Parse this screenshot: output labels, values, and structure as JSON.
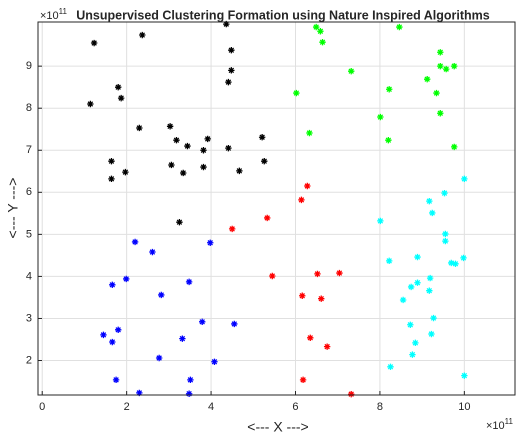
{
  "chart_data": {
    "type": "scatter",
    "title": "Unsupervised Clustering Formation using Nature Inspired Algorithms",
    "x_label": "<--- X --->",
    "y_label": "<--- Y --->",
    "x_multiplier": {
      "base": "×10",
      "exponent": "11"
    },
    "y_multiplier": {
      "base": "×10",
      "exponent": "11"
    },
    "xlim": [
      -0.1,
      11.2
    ],
    "ylim": [
      1.18,
      10.05
    ],
    "xticks": [
      0,
      2,
      4,
      6,
      8,
      10
    ],
    "yticks": [
      2,
      3,
      4,
      5,
      6,
      7,
      8,
      9
    ],
    "grid": true,
    "marker": "asterisk",
    "series": [
      {
        "color": "#000000",
        "x": [
          1.23,
          2.37,
          4.36,
          4.48,
          4.48,
          4.41,
          1.8,
          1.87,
          1.14,
          2.3,
          3.03,
          3.18,
          3.44,
          3.92,
          3.82,
          4.41,
          5.21,
          1.64,
          5.26,
          3.06,
          3.82,
          3.34,
          4.67,
          1.64,
          1.97,
          3.25
        ],
        "values": [
          9.55,
          9.74,
          10.0,
          9.38,
          8.9,
          8.62,
          8.5,
          8.24,
          8.1,
          7.53,
          7.57,
          7.24,
          7.1,
          7.27,
          7.0,
          7.05,
          7.31,
          6.74,
          6.74,
          6.65,
          6.6,
          6.46,
          6.51,
          6.32,
          6.48,
          5.29
        ]
      },
      {
        "color": "#ff0000",
        "x": [
          6.28,
          6.14,
          5.33,
          4.5,
          5.45,
          7.04,
          6.52,
          6.16,
          6.61,
          6.35,
          6.75,
          6.18,
          7.32
        ],
        "values": [
          6.15,
          5.82,
          5.39,
          5.13,
          4.01,
          4.08,
          4.06,
          3.54,
          3.47,
          2.54,
          2.33,
          1.54,
          1.2
        ]
      },
      {
        "color": "#0000ff",
        "x": [
          2.2,
          2.61,
          3.98,
          1.99,
          1.66,
          2.82,
          3.48,
          4.55,
          3.79,
          3.32,
          1.45,
          1.8,
          1.66,
          2.77,
          4.08,
          1.75,
          3.51,
          2.3,
          3.48
        ],
        "values": [
          4.82,
          4.58,
          4.8,
          3.94,
          3.8,
          3.56,
          3.87,
          2.87,
          2.92,
          2.52,
          2.61,
          2.73,
          2.44,
          2.06,
          1.97,
          1.54,
          1.54,
          1.23,
          1.21
        ]
      },
      {
        "color": "#00ff00",
        "x": [
          6.49,
          6.59,
          6.64,
          8.46,
          9.43,
          9.43,
          9.57,
          9.76,
          7.32,
          9.12,
          9.34,
          8.22,
          6.02,
          9.43,
          8.01,
          6.33,
          8.2,
          9.76
        ],
        "values": [
          9.93,
          9.83,
          9.57,
          9.93,
          9.33,
          9.0,
          8.93,
          9.0,
          8.88,
          8.69,
          8.36,
          8.45,
          8.36,
          7.88,
          7.79,
          7.41,
          7.24,
          7.08
        ]
      },
      {
        "color": "#00ffff",
        "x": [
          10.0,
          9.53,
          9.17,
          9.24,
          8.01,
          9.55,
          9.55,
          9.98,
          8.89,
          8.22,
          9.69,
          9.79,
          9.19,
          8.89,
          8.74,
          9.17,
          8.55,
          9.27,
          8.72,
          9.22,
          8.84,
          8.77,
          8.25,
          10.0
        ],
        "values": [
          6.32,
          5.98,
          5.79,
          5.51,
          5.32,
          5.01,
          4.84,
          4.44,
          4.46,
          4.37,
          4.32,
          4.3,
          3.96,
          3.85,
          3.75,
          3.66,
          3.44,
          3.01,
          2.85,
          2.63,
          2.42,
          2.14,
          1.85,
          1.64
        ]
      }
    ]
  }
}
